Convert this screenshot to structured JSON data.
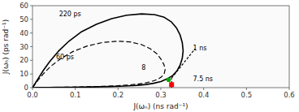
{
  "chart_data": {
    "type": "line",
    "xlabel": "J(ωₙ)  (ns rad⁻¹)",
    "ylabel": "J(ωₕ)  (ps rad⁻¹)",
    "xlim": [
      0,
      0.6
    ],
    "ylim": [
      0,
      60
    ],
    "xticks": [
      {
        "value": 0,
        "label": "0.0"
      },
      0.1,
      0.2,
      0.3,
      0.4,
      0.5,
      0.6
    ],
    "yticks": [
      0,
      10,
      20,
      30,
      40,
      50,
      60
    ],
    "grid": false,
    "series": [
      {
        "type": "line",
        "color": "#000000",
        "line_style": "solid",
        "x": [
          0.0,
          0.003,
          0.008,
          0.015,
          0.025,
          0.04,
          0.06,
          0.085,
          0.115,
          0.15,
          0.185,
          0.22,
          0.255,
          0.285,
          0.308,
          0.325,
          0.337,
          0.345,
          0.35,
          0.352,
          0.35,
          0.345,
          0.338,
          0.328,
          0.315,
          0.3,
          0.283,
          0.265,
          0.245,
          0.225,
          0.205,
          0.182,
          0.16,
          0.138,
          0.115,
          0.093,
          0.073,
          0.055,
          0.04,
          0.028,
          0.018,
          0.01,
          0.005,
          0.002,
          0.0
        ],
        "values": [
          0.0,
          1.5,
          4.0,
          7.5,
          12.5,
          19.0,
          26.5,
          34.0,
          41.0,
          46.5,
          50.5,
          53.0,
          54.0,
          53.5,
          51.5,
          48.0,
          43.5,
          38.5,
          33.0,
          27.0,
          21.5,
          16.5,
          12.5,
          9.0,
          6.5,
          4.5,
          3.2,
          2.3,
          1.7,
          1.3,
          1.0,
          0.8,
          0.65,
          0.5,
          0.4,
          0.32,
          0.25,
          0.2,
          0.16,
          0.12,
          0.09,
          0.06,
          0.04,
          0.02,
          0.0
        ]
      },
      {
        "type": "line",
        "color": "#000000",
        "line_style": "dashed",
        "x": [
          0.0,
          0.005,
          0.013,
          0.025,
          0.042,
          0.065,
          0.095,
          0.128,
          0.163,
          0.197,
          0.228,
          0.255,
          0.275,
          0.29,
          0.3,
          0.307,
          0.31,
          0.308,
          0.302,
          0.292,
          0.278,
          0.262,
          0.243,
          0.222,
          0.2,
          0.177,
          0.153,
          0.13,
          0.107,
          0.086,
          0.067,
          0.05,
          0.036,
          0.025,
          0.016,
          0.009,
          0.004,
          0.001,
          0.0
        ],
        "values": [
          0.0,
          2.0,
          5.5,
          10.0,
          15.5,
          21.0,
          26.5,
          30.5,
          33.0,
          34.0,
          33.5,
          31.5,
          28.5,
          25.0,
          21.0,
          17.0,
          13.5,
          10.5,
          8.0,
          6.0,
          4.5,
          3.3,
          2.5,
          1.9,
          1.4,
          1.1,
          0.85,
          0.65,
          0.5,
          0.38,
          0.28,
          0.21,
          0.15,
          0.11,
          0.08,
          0.05,
          0.03,
          0.01,
          0.0
        ]
      },
      {
        "type": "line",
        "color": "#000000",
        "line_style": "dotted",
        "x": [
          0.325,
          0.325
        ],
        "values": [
          0.0,
          7.0
        ]
      },
      {
        "type": "line",
        "color": "#000000",
        "line_style": "dotted",
        "x": [
          0.325,
          0.38
        ],
        "values": [
          7.0,
          28.5
        ]
      },
      {
        "type": "scatter",
        "color": "#ff0000",
        "marker": "square",
        "x": [
          0.325
        ],
        "values": [
          2.2
        ]
      },
      {
        "type": "scatter",
        "color": "#00aa00",
        "marker": "circle",
        "x": [
          0.318
        ],
        "values": [
          5.8
        ]
      }
    ],
    "annotations": [
      {
        "text": "220 ps",
        "x": 0.062,
        "y": 53.5
      },
      {
        "text": "60 ps",
        "x": 0.055,
        "y": 22.5
      },
      {
        "text": "1 ns",
        "x": 0.375,
        "y": 29.0
      },
      {
        "text": "7.5 ns",
        "x": 0.375,
        "y": 6.5
      },
      {
        "text": "8",
        "x": 0.255,
        "y": 14.5
      }
    ]
  }
}
